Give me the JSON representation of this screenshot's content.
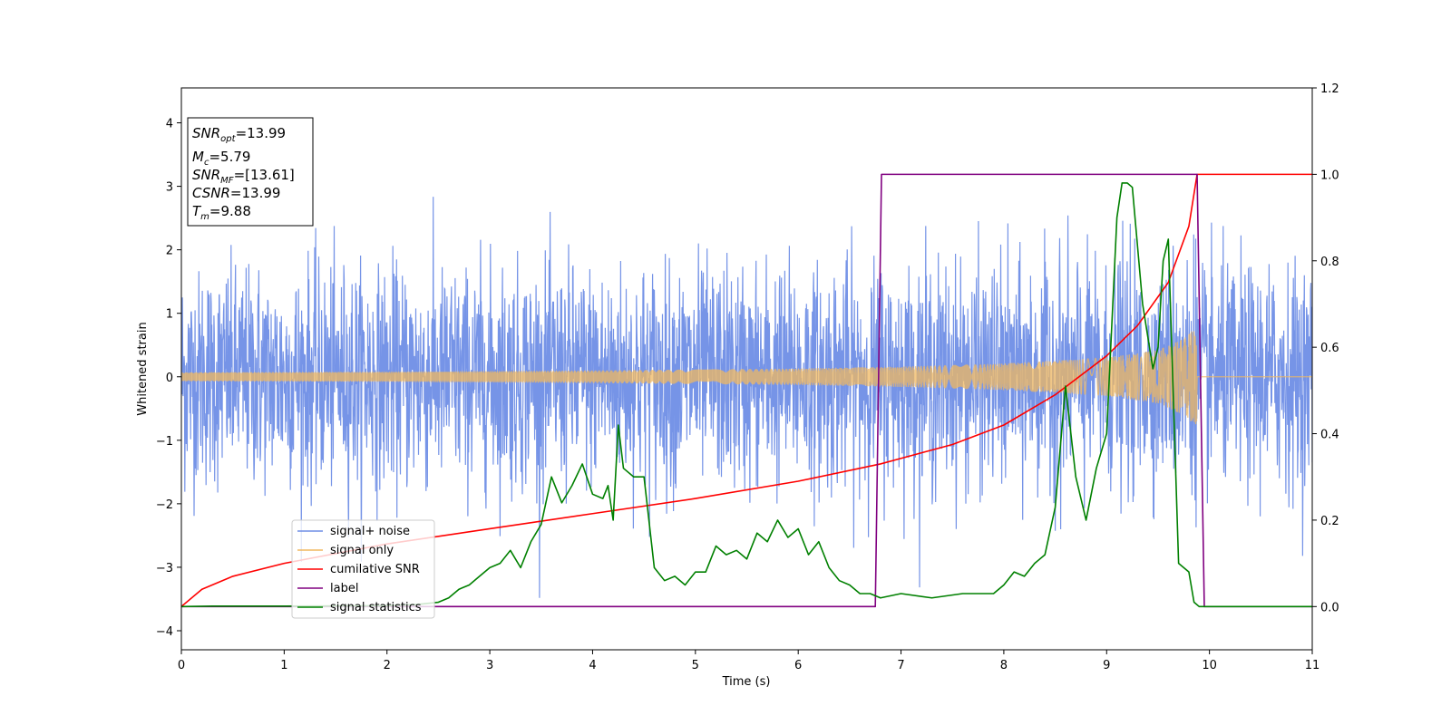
{
  "chart_data": {
    "type": "line",
    "xlabel": "Time (s)",
    "ylabel": "Whitened strain",
    "xlim": [
      0,
      11
    ],
    "ylim_left": [
      -4.3,
      4.55
    ],
    "ylim_right": [
      -0.1,
      1.2
    ],
    "x_ticks": [
      "0",
      "1",
      "2",
      "3",
      "4",
      "5",
      "6",
      "7",
      "8",
      "9",
      "10",
      "11"
    ],
    "y_ticks_left": [
      "−4",
      "−3",
      "−2",
      "−1",
      "0",
      "1",
      "2",
      "3",
      "4"
    ],
    "y_ticks_right": [
      "0.0",
      "0.2",
      "0.4",
      "0.6",
      "0.8",
      "1.0",
      "1.2"
    ],
    "grid": false,
    "legend_position": "lower-left",
    "info_box": {
      "snr_opt": "=13.99",
      "mc": "=5.79",
      "snr_mf": "=[13.61]",
      "csnr": "=13.99",
      "tm": "=9.88"
    },
    "series": [
      {
        "name": "signal+ noise",
        "axis": "left",
        "color": "#6f8ee6",
        "note_values": "dense whitened noise, approx std 0.85 over t=0..11, plus signal",
        "noise_std": 0.85
      },
      {
        "name": "signal only",
        "axis": "left",
        "color": "#f0b860",
        "envelope": {
          "t": [
            0,
            2,
            4,
            6,
            7,
            8,
            9,
            9.5,
            9.75,
            9.88
          ],
          "amp": [
            0.07,
            0.08,
            0.1,
            0.13,
            0.16,
            0.21,
            0.3,
            0.42,
            0.6,
            0.8
          ]
        },
        "merger_time": 9.88
      },
      {
        "name": "cumilative SNR",
        "axis": "right",
        "color": "#ff0000",
        "t": [
          0,
          0.2,
          0.5,
          1,
          2,
          3,
          4,
          5,
          6,
          6.8,
          7.5,
          8,
          8.5,
          9,
          9.3,
          9.6,
          9.8,
          9.88,
          11
        ],
        "values": [
          0.0,
          0.04,
          0.07,
          0.1,
          0.145,
          0.18,
          0.215,
          0.25,
          0.29,
          0.33,
          0.375,
          0.42,
          0.49,
          0.58,
          0.65,
          0.75,
          0.88,
          1.0,
          1.0
        ]
      },
      {
        "name": "label",
        "axis": "right",
        "color": "#800080",
        "t": [
          0,
          6.75,
          6.81,
          9.88,
          9.95,
          11
        ],
        "values": [
          0,
          0,
          1,
          1,
          0,
          0
        ]
      },
      {
        "name": "signal statistics",
        "axis": "right",
        "color": "#008000",
        "t": [
          0,
          0.3,
          1,
          2,
          2.3,
          2.5,
          2.6,
          2.7,
          2.8,
          2.9,
          3.0,
          3.1,
          3.2,
          3.3,
          3.4,
          3.5,
          3.6,
          3.7,
          3.8,
          3.9,
          4.0,
          4.1,
          4.15,
          4.2,
          4.25,
          4.3,
          4.4,
          4.5,
          4.6,
          4.7,
          4.8,
          4.9,
          5.0,
          5.1,
          5.2,
          5.3,
          5.4,
          5.5,
          5.6,
          5.7,
          5.8,
          5.9,
          6.0,
          6.1,
          6.2,
          6.3,
          6.4,
          6.5,
          6.6,
          6.7,
          6.8,
          7.0,
          7.3,
          7.6,
          7.9,
          8.0,
          8.1,
          8.2,
          8.3,
          8.4,
          8.5,
          8.6,
          8.7,
          8.8,
          8.9,
          9.0,
          9.1,
          9.15,
          9.2,
          9.25,
          9.35,
          9.45,
          9.5,
          9.55,
          9.6,
          9.7,
          9.8,
          9.85,
          9.9,
          9.95,
          10,
          11
        ],
        "values": [
          0.0,
          0.001,
          0.001,
          0.002,
          0.005,
          0.01,
          0.02,
          0.04,
          0.05,
          0.07,
          0.09,
          0.1,
          0.13,
          0.09,
          0.15,
          0.19,
          0.3,
          0.24,
          0.28,
          0.33,
          0.26,
          0.25,
          0.28,
          0.2,
          0.42,
          0.32,
          0.3,
          0.3,
          0.09,
          0.06,
          0.07,
          0.05,
          0.08,
          0.08,
          0.14,
          0.12,
          0.13,
          0.11,
          0.17,
          0.15,
          0.2,
          0.16,
          0.18,
          0.12,
          0.15,
          0.09,
          0.06,
          0.05,
          0.03,
          0.03,
          0.02,
          0.03,
          0.02,
          0.03,
          0.03,
          0.05,
          0.08,
          0.07,
          0.1,
          0.12,
          0.23,
          0.51,
          0.3,
          0.2,
          0.32,
          0.4,
          0.9,
          0.98,
          0.98,
          0.97,
          0.7,
          0.55,
          0.6,
          0.8,
          0.85,
          0.1,
          0.08,
          0.01,
          0.0,
          0.0,
          0.0,
          0.0
        ]
      }
    ]
  }
}
